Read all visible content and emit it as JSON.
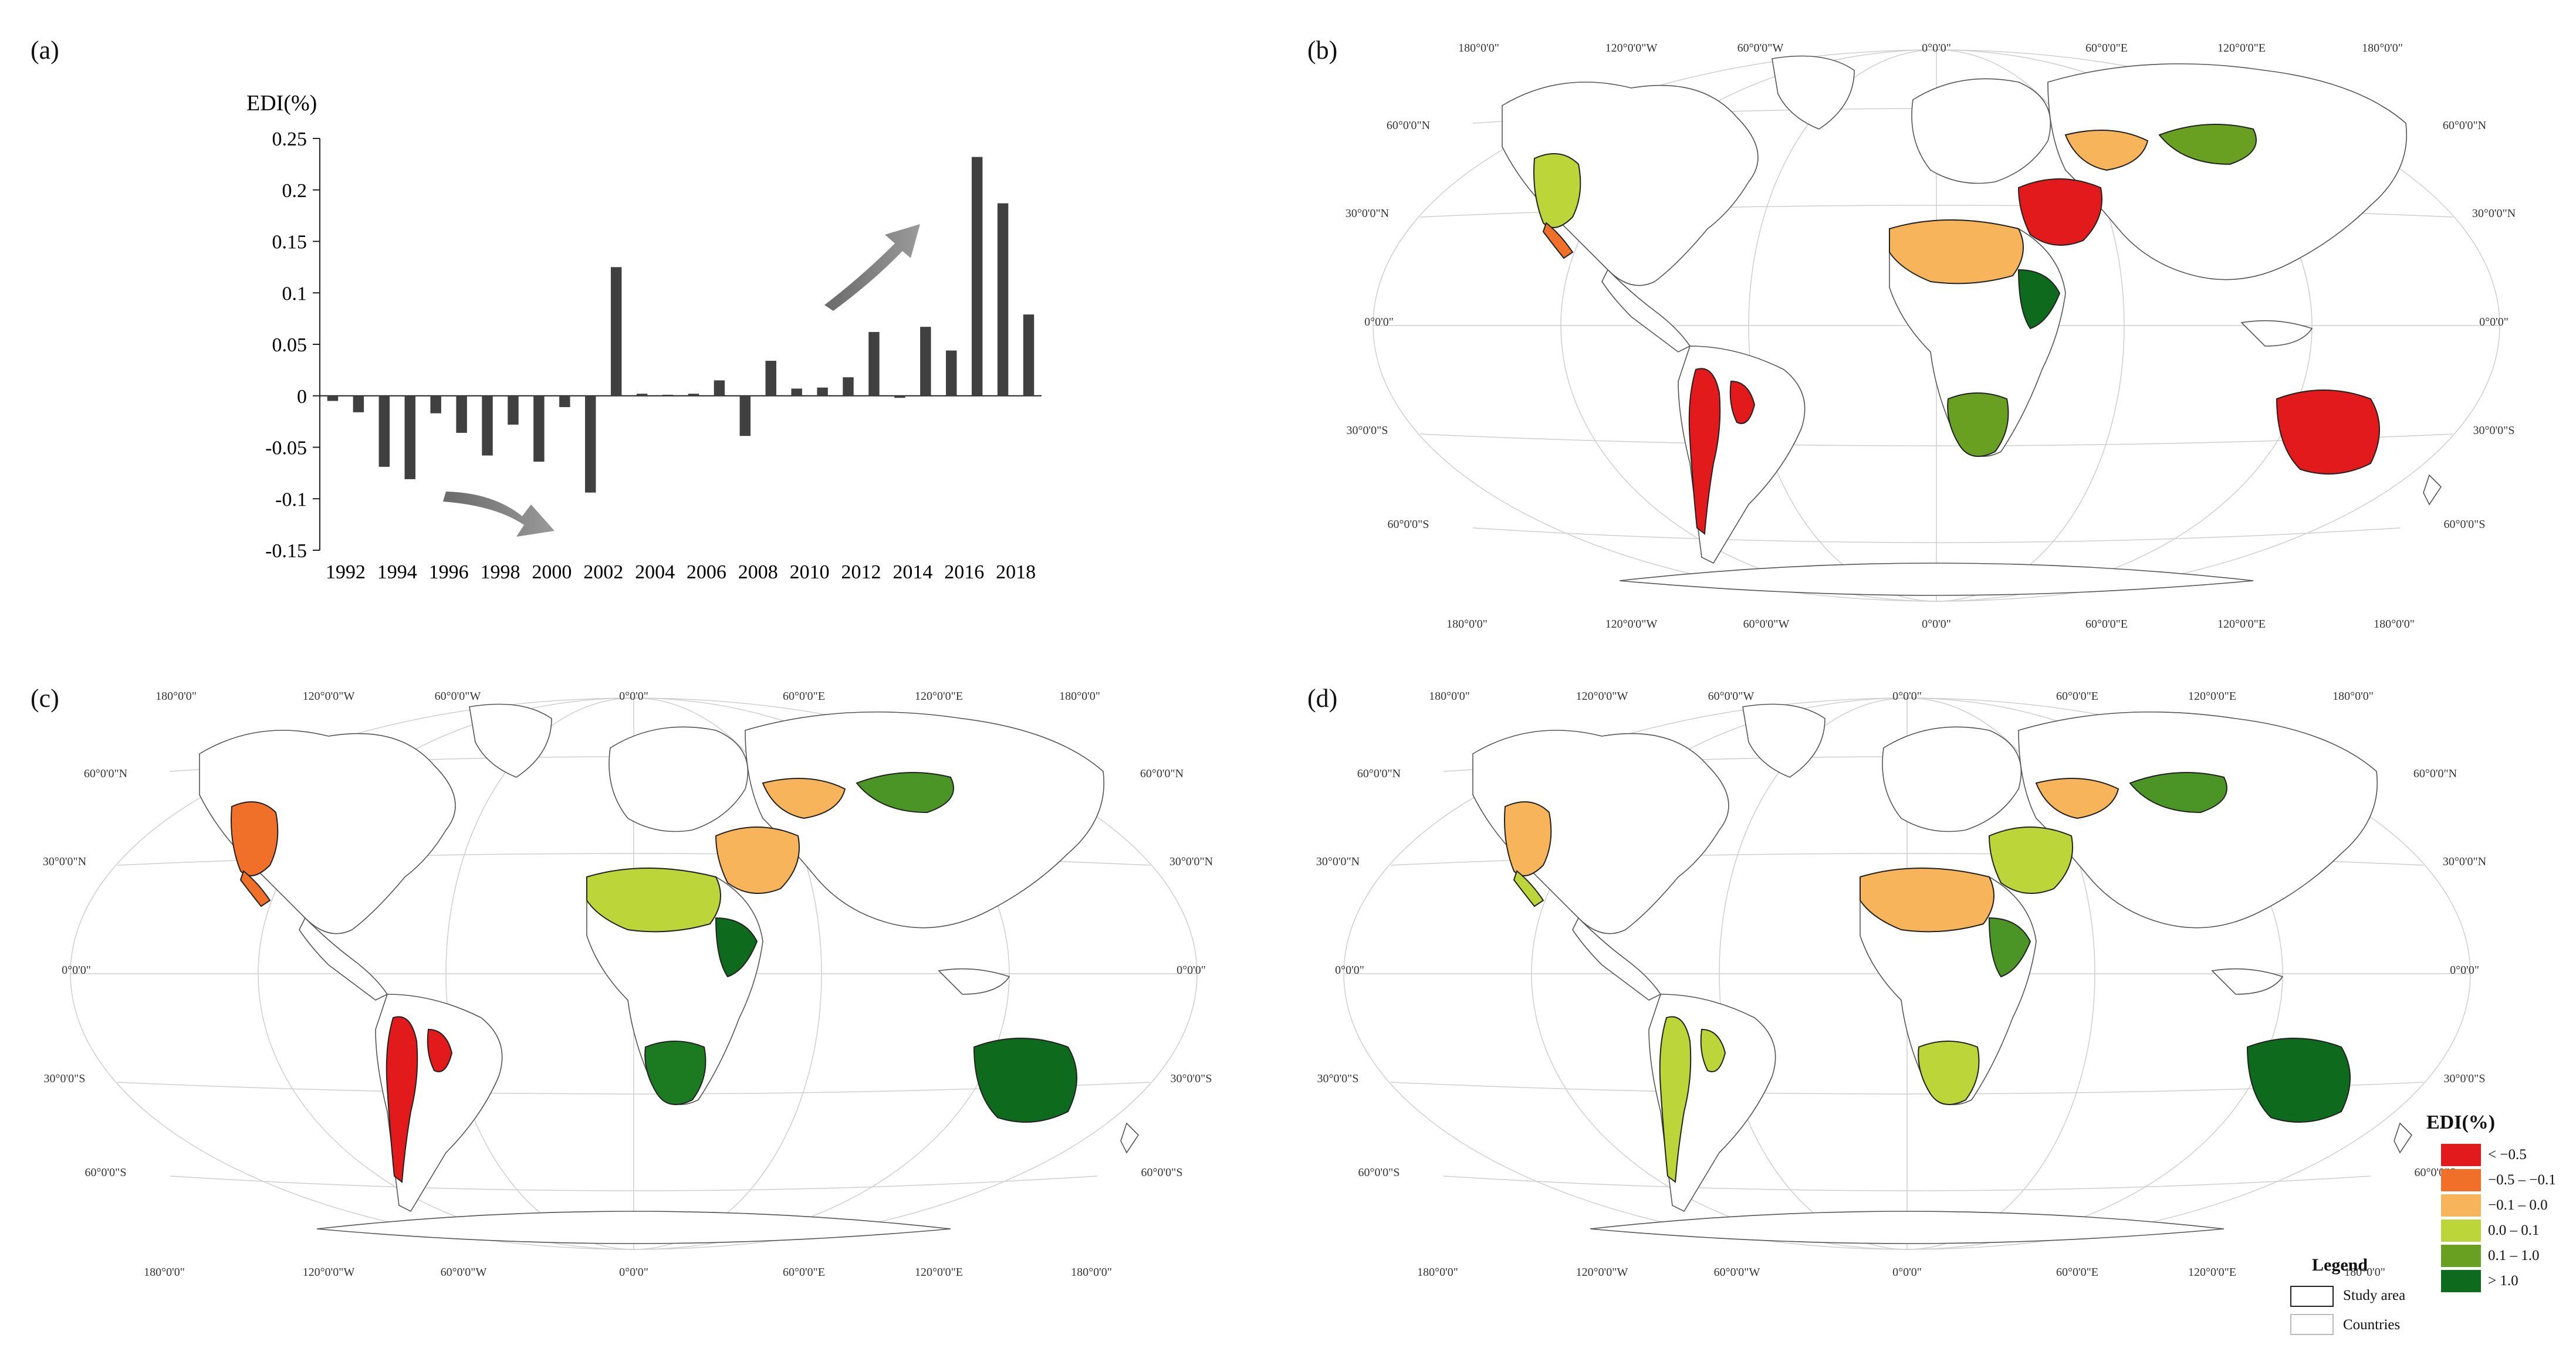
{
  "labels": {
    "a": "(a)",
    "b": "(b)",
    "c": "(c)",
    "d": "(d)"
  },
  "chart_data": {
    "type": "bar",
    "ylabel": "EDI(%)",
    "x": [
      1992,
      1993,
      1994,
      1995,
      1996,
      1997,
      1998,
      1999,
      2000,
      2001,
      2002,
      2003,
      2004,
      2005,
      2006,
      2007,
      2008,
      2009,
      2010,
      2011,
      2012,
      2013,
      2014,
      2015,
      2016,
      2017,
      2018,
      2019
    ],
    "values": [
      -0.005,
      -0.016,
      -0.069,
      -0.081,
      -0.017,
      -0.036,
      -0.058,
      -0.028,
      -0.064,
      -0.011,
      -0.094,
      0.125,
      0.002,
      0.001,
      0.002,
      0.015,
      -0.039,
      0.034,
      0.007,
      0.008,
      0.018,
      0.062,
      -0.002,
      0.067,
      0.044,
      0.232,
      0.187,
      0.079
    ],
    "xticks": [
      "1992",
      "1994",
      "1996",
      "1998",
      "2000",
      "2002",
      "2004",
      "2006",
      "2008",
      "2010",
      "2012",
      "2014",
      "2016",
      "2018"
    ],
    "yticks": [
      "0.25",
      "0.2",
      "0.15",
      "0.1",
      "0.05",
      "0",
      "-0.05",
      "-0.1",
      "-0.15"
    ],
    "ylim": [
      -0.15,
      0.25
    ],
    "bar_color": "#404040"
  },
  "map_grid": {
    "lon_labels": [
      "180°0'0\"",
      "120°0'0\"W",
      "60°0'0\"W",
      "0°0'0\"",
      "60°0'0\"E",
      "120°0'0\"E",
      "180°0'0\""
    ],
    "lat_left": [
      "60°0'0\"N",
      "30°0'0\"N",
      "0°0'0\"",
      "30°0'0\"S",
      "60°0'0\"S"
    ],
    "lat_right": [
      "60°0'0\"N",
      "30°0'0\"N",
      "0°0'0\"",
      "30°0'0\"S",
      "60°0'0\"S"
    ]
  },
  "maps": {
    "b": {
      "na": "#bcd63a",
      "ca": "#f0702a",
      "sa": "#e31a1c",
      "chile": "#e31a1c",
      "saf": "#6aa022",
      "sahara": "#f8b45a",
      "mid": "#e31a1c",
      "cas": "#f8b45a",
      "mong": "#6aa022",
      "aus": "#e31a1c",
      "horn": "#0e6b1d"
    },
    "c": {
      "na": "#f0702a",
      "ca": "#f0702a",
      "sa": "#e31a1c",
      "chile": "#e31a1c",
      "saf": "#1c7a20",
      "sahara": "#bcd63a",
      "mid": "#f8b45a",
      "cas": "#f8b45a",
      "mong": "#4b9426",
      "aus": "#0e6b1d",
      "horn": "#0e6b1d"
    },
    "d": {
      "na": "#f8b45a",
      "ca": "#bcd63a",
      "sa": "#bcd63a",
      "chile": "#bcd63a",
      "saf": "#bcd63a",
      "sahara": "#f8b45a",
      "mid": "#bcd63a",
      "cas": "#f8b45a",
      "mong": "#4b9426",
      "aus": "#0e6b1d",
      "horn": "#4b9426"
    }
  },
  "legend": {
    "title": "EDI(%)",
    "classes": [
      {
        "label": "< −0.5",
        "color": "#e31a1c"
      },
      {
        "label": "−0.5 – −0.1",
        "color": "#f0702a"
      },
      {
        "label": "−0.1 – 0.0",
        "color": "#f8b45a"
      },
      {
        "label": "0.0 – 0.1",
        "color": "#bcd63a"
      },
      {
        "label": "0.1 – 1.0",
        "color": "#6aa022"
      },
      {
        "label": "> 1.0",
        "color": "#0e6b1d"
      }
    ],
    "legend_title": "Legend",
    "study_area": "Study area",
    "countries": "Countries"
  }
}
